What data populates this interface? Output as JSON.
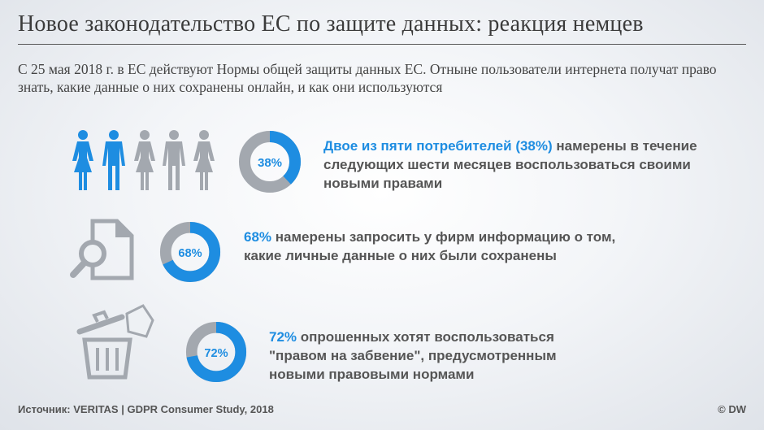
{
  "header": {
    "title": "Новое законодательство ЕС по защите данных: реакция немцев",
    "intro": "С 25 мая 2018 г. в ЕС действуют Нормы общей защиты данных ЕС. Отныне пользователи интернета получат право знать, какие данные о них сохранены онлайн, и как они используются"
  },
  "colors": {
    "accent": "#1e8de1",
    "muted": "#a3a8af",
    "text": "#555555"
  },
  "chart_data": {
    "type": "pie",
    "charts": [
      {
        "value": 38,
        "label": "38%",
        "icon": "people-icon",
        "text_highlight": "Двое из пяти потребителей (38%)",
        "text_rest": " намерены в течение следующих шести месяцев воспользоваться своими новыми правами"
      },
      {
        "value": 68,
        "label": "68%",
        "icon": "document-search-icon",
        "text_highlight": "68%",
        "text_rest": " намерены запросить у фирм информацию о том, какие личные данные о них были сохранены"
      },
      {
        "value": 72,
        "label": "72%",
        "icon": "trash-icon",
        "text_highlight": "72%",
        "text_rest": " опрошенных хотят воспользоваться \"правом на забвение\", предусмотренным новыми правовыми нормами"
      }
    ]
  },
  "footer": {
    "source": "Источник: VERITAS | GDPR Consumer Study, 2018",
    "copyright": "© DW"
  }
}
